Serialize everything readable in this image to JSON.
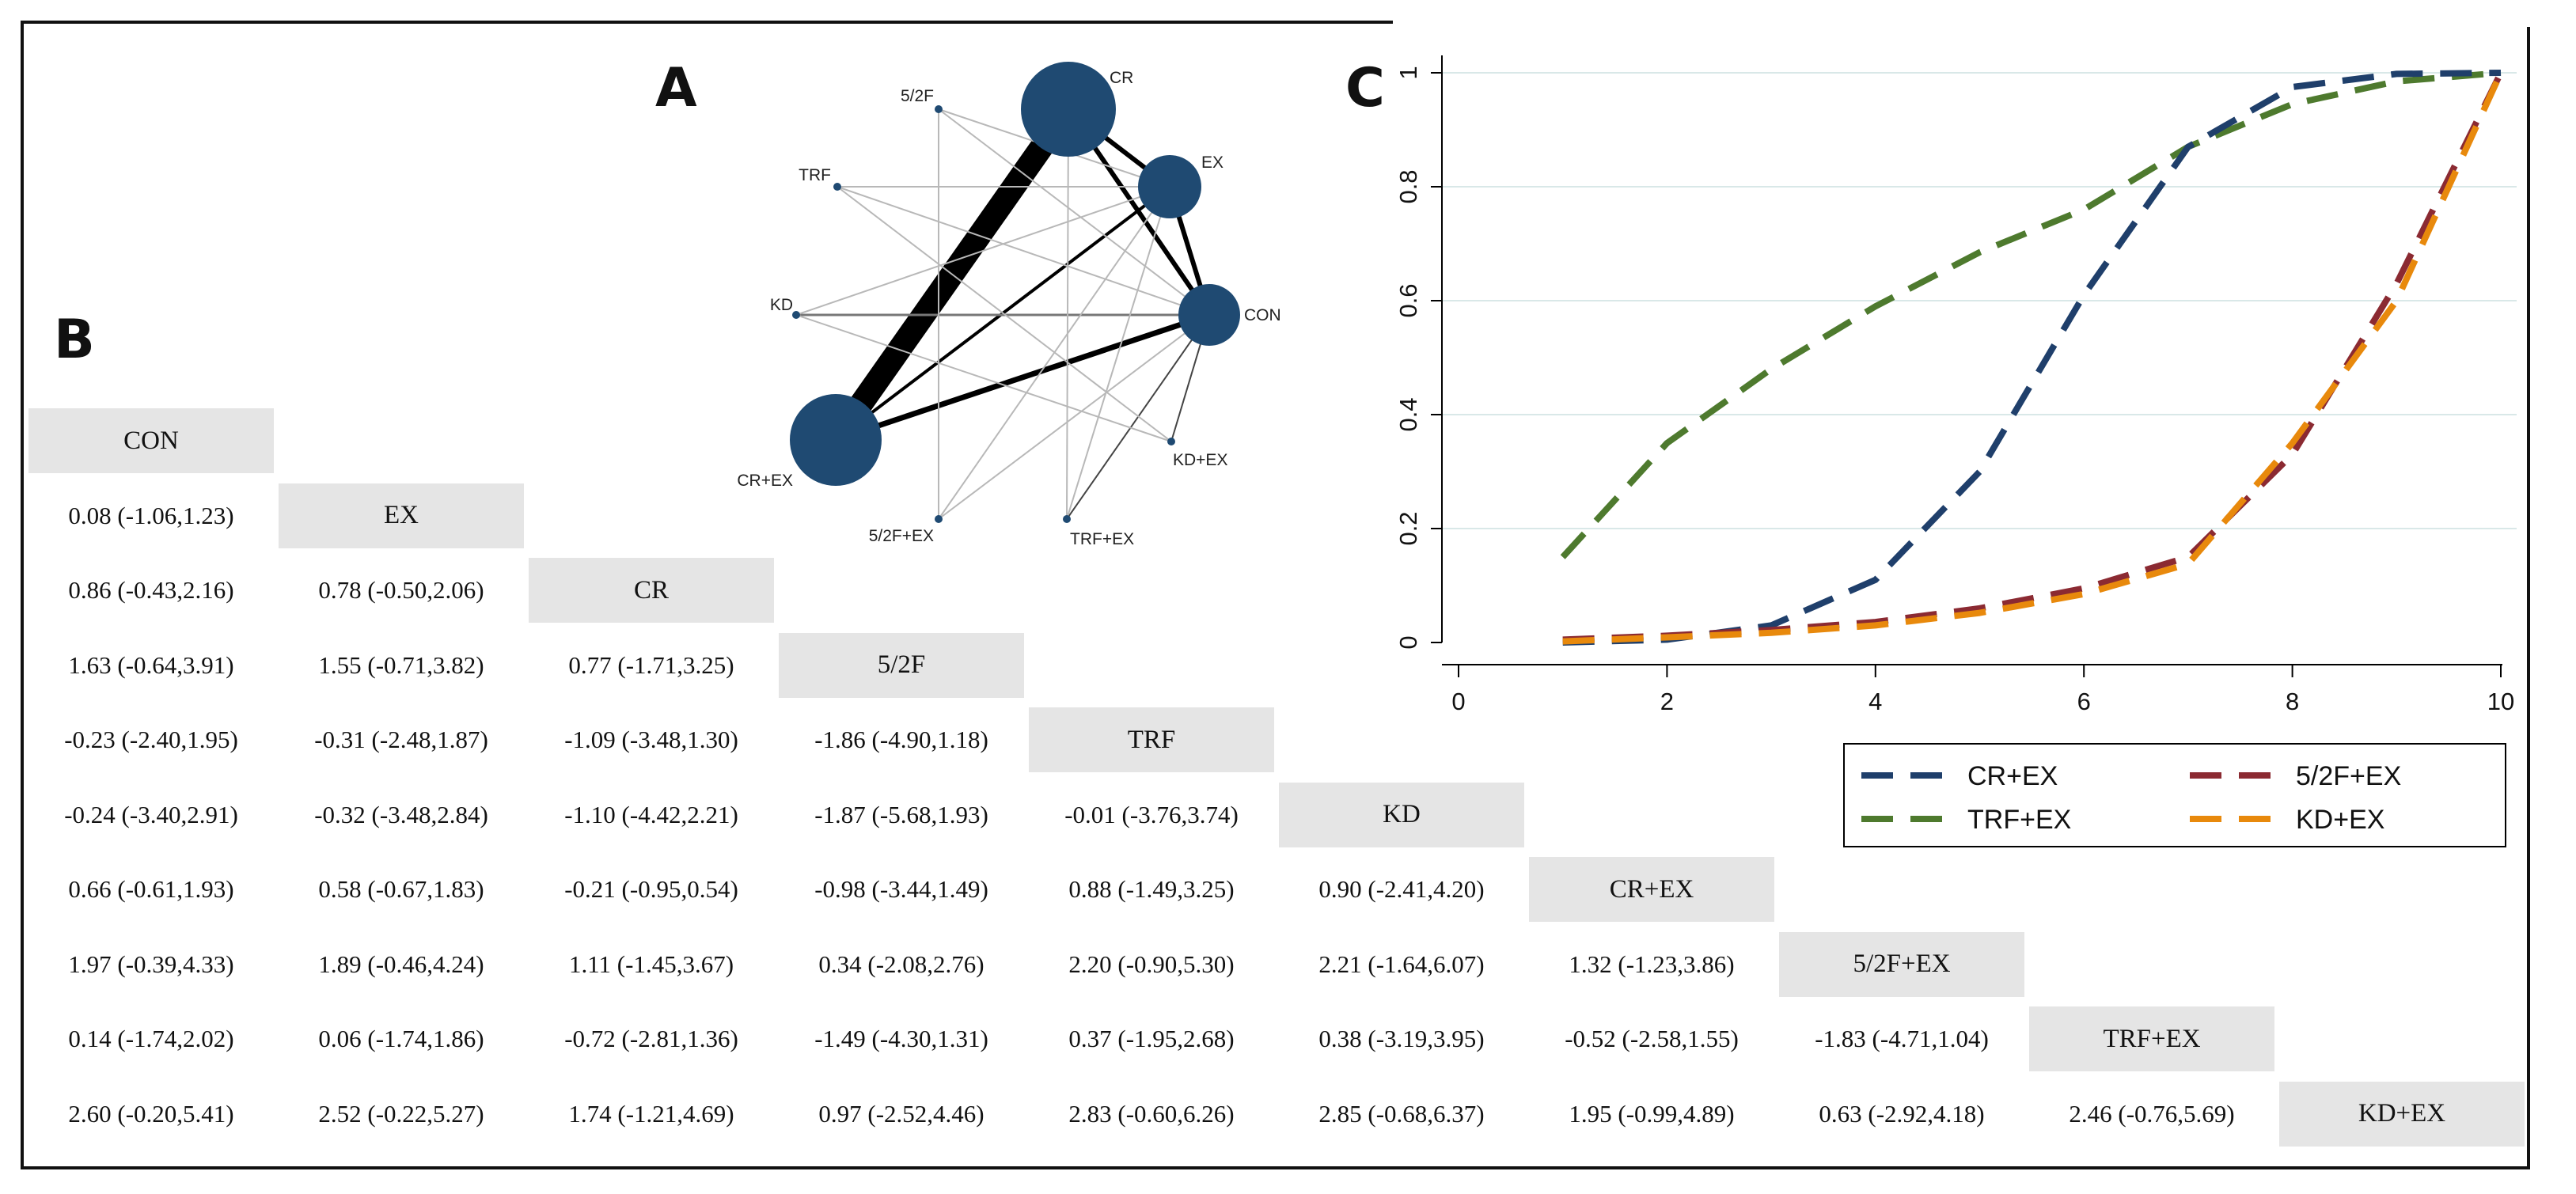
{
  "panels": {
    "a": "A",
    "b": "B",
    "c": "C"
  },
  "network": {
    "nodes": [
      {
        "label": "CON",
        "weight": 1.0
      },
      {
        "label": "EX",
        "weight": 1.0
      },
      {
        "label": "CR",
        "weight": 1.9
      },
      {
        "label": "5/2F",
        "weight": 0.1
      },
      {
        "label": "TRF",
        "weight": 0.1
      },
      {
        "label": "KD",
        "weight": 0.1
      },
      {
        "label": "CR+EX",
        "weight": 1.6
      },
      {
        "label": "5/2F+EX",
        "weight": 0.1
      },
      {
        "label": "TRF+EX",
        "weight": 0.1
      },
      {
        "label": "KD+EX",
        "weight": 0.1
      }
    ]
  },
  "matrix": {
    "treatments": [
      "CON",
      "EX",
      "CR",
      "5/2F",
      "TRF",
      "KD",
      "CR+EX",
      "5/2F+EX",
      "TRF+EX",
      "KD+EX"
    ],
    "rows": [
      [],
      [
        "0.08 (-1.06,1.23)"
      ],
      [
        "0.86 (-0.43,2.16)",
        "0.78 (-0.50,2.06)"
      ],
      [
        "1.63 (-0.64,3.91)",
        "1.55 (-0.71,3.82)",
        "0.77 (-1.71,3.25)"
      ],
      [
        "-0.23 (-2.40,1.95)",
        "-0.31 (-2.48,1.87)",
        "-1.09 (-3.48,1.30)",
        "-1.86 (-4.90,1.18)"
      ],
      [
        "-0.24 (-3.40,2.91)",
        "-0.32 (-3.48,2.84)",
        "-1.10 (-4.42,2.21)",
        "-1.87 (-5.68,1.93)",
        "-0.01 (-3.76,3.74)"
      ],
      [
        "0.66 (-0.61,1.93)",
        "0.58 (-0.67,1.83)",
        "-0.21 (-0.95,0.54)",
        "-0.98 (-3.44,1.49)",
        "0.88 (-1.49,3.25)",
        "0.90 (-2.41,4.20)"
      ],
      [
        "1.97 (-0.39,4.33)",
        "1.89 (-0.46,4.24)",
        "1.11 (-1.45,3.67)",
        "0.34 (-2.08,2.76)",
        "2.20 (-0.90,5.30)",
        "2.21 (-1.64,6.07)",
        "1.32 (-1.23,3.86)"
      ],
      [
        "0.14 (-1.74,2.02)",
        "0.06 (-1.74,1.86)",
        "-0.72 (-2.81,1.36)",
        "-1.49 (-4.30,1.31)",
        "0.37 (-1.95,2.68)",
        "0.38 (-3.19,3.95)",
        "-0.52 (-2.58,1.55)",
        "-1.83 (-4.71,1.04)"
      ],
      [
        "2.60 (-0.20,5.41)",
        "2.52 (-0.22,5.27)",
        "1.74 (-1.21,4.69)",
        "0.97 (-2.52,4.46)",
        "2.83 (-0.60,6.26)",
        "2.85 (-0.68,6.37)",
        "1.95 (-0.99,4.89)",
        "0.63 (-2.92,4.18)",
        "2.46 (-0.76,5.69)"
      ]
    ]
  },
  "chart_data": {
    "type": "line",
    "title": "",
    "xlabel": "",
    "ylabel": "",
    "xlim": [
      0,
      10
    ],
    "ylim": [
      0,
      1
    ],
    "x_ticks": [
      "0",
      "2",
      "4",
      "6",
      "8",
      "10"
    ],
    "y_ticks": [
      "0",
      "0.2",
      "0.4",
      "0.6",
      "0.8",
      "1"
    ],
    "grid": "horizontal",
    "legend_position": "bottom-right",
    "x": [
      1,
      2,
      3,
      4,
      5,
      6,
      7,
      8,
      9,
      10
    ],
    "series": [
      {
        "name": "CR+EX",
        "color": "#1f3f6b",
        "values": [
          0.0,
          0.005,
          0.03,
          0.11,
          0.3,
          0.61,
          0.87,
          0.975,
          0.998,
          1.0
        ]
      },
      {
        "name": "5/2F+EX",
        "color": "#8b2a32",
        "values": [
          0.005,
          0.012,
          0.022,
          0.036,
          0.06,
          0.095,
          0.15,
          0.33,
          0.63,
          1.0
        ]
      },
      {
        "name": "TRF+EX",
        "color": "#4e7a2e",
        "values": [
          0.15,
          0.35,
          0.48,
          0.59,
          0.685,
          0.76,
          0.87,
          0.945,
          0.985,
          1.0
        ]
      },
      {
        "name": "KD+EX",
        "color": "#e8890c",
        "values": [
          0.002,
          0.009,
          0.017,
          0.03,
          0.052,
          0.085,
          0.138,
          0.35,
          0.6,
          1.0
        ]
      }
    ]
  }
}
